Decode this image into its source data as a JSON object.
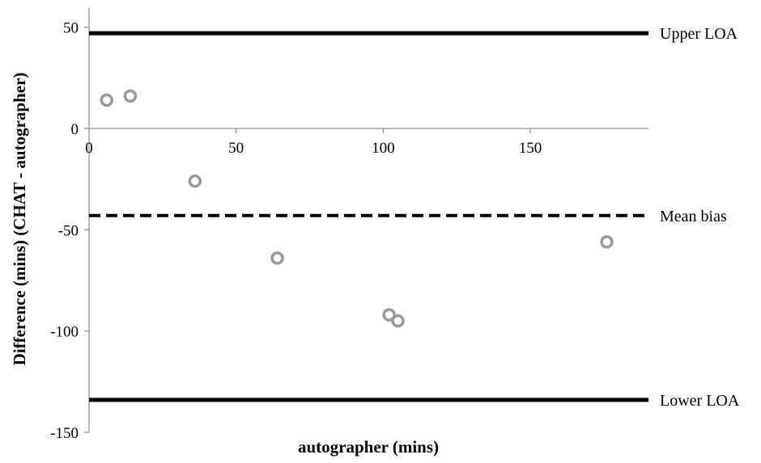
{
  "chart_data": {
    "type": "scatter",
    "title": "",
    "xlabel": "autographer (mins)",
    "ylabel": "Difference (mins) (CHAT - autographer)",
    "xlim": [
      0,
      190
    ],
    "ylim": [
      -150,
      50
    ],
    "x_ticks": [
      0,
      50,
      100,
      150
    ],
    "y_ticks": [
      50,
      0,
      -50,
      -100,
      -150
    ],
    "x_tick_labels": [
      "0",
      "50",
      "100",
      "150"
    ],
    "y_tick_labels": [
      "50",
      "0",
      "-50",
      "-100",
      "-150"
    ],
    "grid": false,
    "points": [
      {
        "x": 6,
        "y": 14
      },
      {
        "x": 14,
        "y": 16
      },
      {
        "x": 36,
        "y": -26
      },
      {
        "x": 64,
        "y": -64
      },
      {
        "x": 102,
        "y": -92
      },
      {
        "x": 105,
        "y": -95
      },
      {
        "x": 176,
        "y": -56
      }
    ],
    "reference_lines": [
      {
        "label": "Upper LOA",
        "y": 47,
        "style": "solid"
      },
      {
        "label": "Mean bias",
        "y": -43,
        "style": "dashed"
      },
      {
        "label": "Lower LOA",
        "y": -134,
        "style": "solid"
      }
    ],
    "colors": {
      "points": "#9a9a9a",
      "lines": "#000000",
      "axis": "#8c8c8c"
    }
  }
}
